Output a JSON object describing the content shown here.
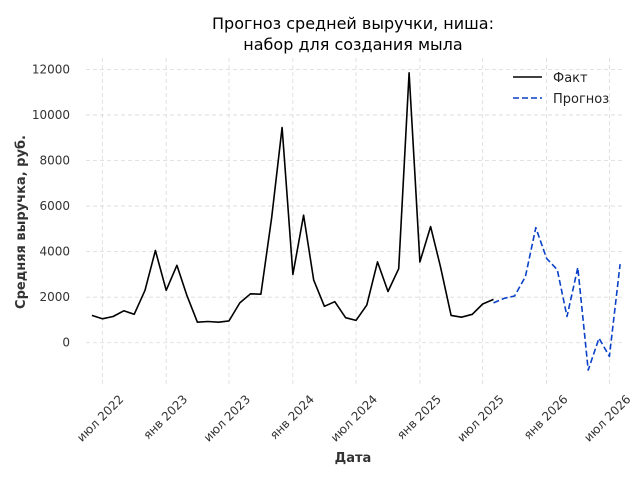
{
  "chart_data": {
    "type": "line",
    "title": [
      "Прогноз средней выручки, ниша:",
      "набор для создания мыла"
    ],
    "xlabel": "Дата",
    "ylabel": "Средняя выручка, руб.",
    "xlim": [
      "2022-05-15",
      "2026-08-15"
    ],
    "ylim": [
      -1900,
      12500
    ],
    "yticks": [
      0,
      2000,
      4000,
      6000,
      8000,
      10000,
      12000
    ],
    "xticks": [
      {
        "date": "2022-07-01",
        "label": "июл 2022"
      },
      {
        "date": "2023-01-01",
        "label": "янв 2023"
      },
      {
        "date": "2023-07-01",
        "label": "июл 2023"
      },
      {
        "date": "2024-01-01",
        "label": "янв 2024"
      },
      {
        "date": "2024-07-01",
        "label": "июл 2024"
      },
      {
        "date": "2025-01-01",
        "label": "янв 2025"
      },
      {
        "date": "2025-07-01",
        "label": "июл 2025"
      },
      {
        "date": "2026-01-01",
        "label": "янв 2026"
      },
      {
        "date": "2026-07-01",
        "label": "июл 2026"
      }
    ],
    "grid": true,
    "legend_position": "top-right",
    "series": [
      {
        "name": "Факт",
        "color": "#000000",
        "style": "solid",
        "x": [
          "2022-06-01",
          "2022-07-01",
          "2022-08-01",
          "2022-09-01",
          "2022-10-01",
          "2022-11-01",
          "2022-12-01",
          "2023-01-01",
          "2023-02-01",
          "2023-03-01",
          "2023-04-01",
          "2023-05-01",
          "2023-06-01",
          "2023-07-01",
          "2023-08-01",
          "2023-09-01",
          "2023-10-01",
          "2023-11-01",
          "2023-12-01",
          "2024-01-01",
          "2024-02-01",
          "2024-03-01",
          "2024-04-01",
          "2024-05-01",
          "2024-06-01",
          "2024-07-01",
          "2024-08-01",
          "2024-09-01",
          "2024-10-01",
          "2024-11-01",
          "2024-12-01",
          "2025-01-01",
          "2025-02-01",
          "2025-03-01",
          "2025-04-01",
          "2025-05-01",
          "2025-06-01",
          "2025-07-01",
          "2025-08-01"
        ],
        "values": [
          1200,
          1050,
          1150,
          1400,
          1250,
          2300,
          4050,
          2300,
          3400,
          2100,
          900,
          930,
          900,
          960,
          1750,
          2150,
          2130,
          5500,
          9450,
          3000,
          5600,
          2750,
          1600,
          1800,
          1100,
          980,
          1650,
          3550,
          2250,
          3250,
          11850,
          3550,
          5100,
          3350,
          1200,
          1120,
          1250,
          1700,
          1900
        ]
      },
      {
        "name": "Прогноз",
        "color": "#0a41c8",
        "style": "dashed",
        "x": [
          "2025-08-01",
          "2025-09-01",
          "2025-10-01",
          "2025-11-01",
          "2025-12-01",
          "2026-01-01",
          "2026-02-01",
          "2026-03-01",
          "2026-04-01",
          "2026-05-01",
          "2026-06-01",
          "2026-07-01",
          "2026-08-01"
        ],
        "values": [
          1750,
          1950,
          2050,
          2900,
          5050,
          3700,
          3200,
          1150,
          3300,
          -1200,
          200,
          -600,
          3450
        ]
      }
    ]
  }
}
